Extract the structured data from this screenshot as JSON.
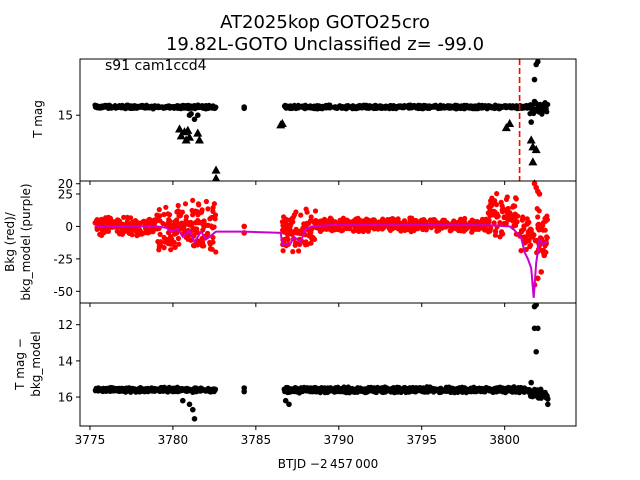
{
  "figure": {
    "title_line1": "AT2025kop  GOTO25cro",
    "title_line2": "19.82L-GOTO Unclassified z= -99.0",
    "xlabel": "BTJD −2 457 000",
    "annotation": "s91 cam1ccd4"
  },
  "chart_data": [
    {
      "name": "magnitude",
      "type": "scatter",
      "ylabel": "T mag",
      "y_inverted": true,
      "xlim": [
        3774.4,
        3804.3
      ],
      "ylim": [
        19.8,
        10.9
      ],
      "yticks": [
        15,
        20
      ],
      "xticks": [
        3775,
        3780,
        3785,
        3790,
        3795,
        3800
      ],
      "detections_color": "#000000",
      "limits_color": "#000000",
      "vline": {
        "x": 3800.9,
        "color": "#ff0000",
        "style": "dashed"
      },
      "segments": [
        {
          "x0": 3775.3,
          "x1": 3782.6,
          "y": 14.4,
          "spread": 0.15
        },
        {
          "x0": 3786.7,
          "x1": 3801.5,
          "y": 14.4,
          "spread": 0.15
        },
        {
          "x0": 3801.5,
          "x1": 3802.6,
          "y": 14.5,
          "spread": 0.5
        }
      ],
      "points": [
        [
          3781.0,
          15.0
        ],
        [
          3781.1,
          14.9
        ],
        [
          3781.3,
          15.3
        ],
        [
          3781.5,
          15.0
        ],
        [
          3784.3,
          14.5
        ],
        [
          3784.3,
          14.4
        ],
        [
          3801.9,
          11.3
        ],
        [
          3802.0,
          11.1
        ],
        [
          3801.8,
          12.4
        ],
        [
          3801.8,
          14.0
        ],
        [
          3802.1,
          14.6
        ],
        [
          3801.6,
          15.5
        ]
      ],
      "limits": [
        [
          3780.4,
          16.0
        ],
        [
          3780.5,
          16.5
        ],
        [
          3780.7,
          16.2
        ],
        [
          3780.8,
          16.8
        ],
        [
          3780.9,
          16.1
        ],
        [
          3781.0,
          16.6
        ],
        [
          3781.5,
          16.3
        ],
        [
          3781.6,
          16.8
        ],
        [
          3782.6,
          19.0
        ],
        [
          3782.6,
          19.6
        ],
        [
          3782.7,
          20.3
        ],
        [
          3782.6,
          21.0
        ],
        [
          3782.7,
          21.5
        ],
        [
          3782.6,
          23.3
        ],
        [
          3786.5,
          15.7
        ],
        [
          3786.6,
          15.6
        ],
        [
          3800.1,
          15.9
        ],
        [
          3800.3,
          15.6
        ],
        [
          3801.6,
          16.8
        ],
        [
          3801.7,
          17.3
        ],
        [
          3801.9,
          17.5
        ],
        [
          3801.7,
          18.4
        ],
        [
          3801.8,
          20.0
        ],
        [
          3801.7,
          22.4
        ]
      ]
    },
    {
      "name": "background",
      "type": "scatter+line",
      "ylabel_line1": "Bkg (red)/",
      "ylabel_line2": "bkg_model (purple)",
      "xlim": [
        3774.4,
        3804.3
      ],
      "ylim": [
        -59,
        35
      ],
      "yticks": [
        -50,
        -25,
        0,
        25
      ],
      "bkg_color": "#ff0000",
      "model_color": "#cc00cc",
      "model_line": [
        [
          3775.3,
          0
        ],
        [
          3779.0,
          0
        ],
        [
          3779.6,
          -1
        ],
        [
          3779.9,
          -4
        ],
        [
          3780.3,
          -2
        ],
        [
          3780.6,
          -8
        ],
        [
          3781.0,
          -3
        ],
        [
          3781.3,
          -12
        ],
        [
          3781.7,
          -4
        ],
        [
          3782.0,
          -10
        ],
        [
          3782.6,
          -4
        ],
        [
          3784.3,
          -4
        ],
        [
          3784.3,
          -4
        ],
        [
          3786.5,
          -5
        ],
        [
          3786.6,
          -14
        ],
        [
          3787.1,
          -13
        ],
        [
          3787.3,
          -8
        ],
        [
          3787.7,
          -12
        ],
        [
          3788.0,
          -2
        ],
        [
          3788.4,
          0
        ],
        [
          3789.5,
          1
        ],
        [
          3799.0,
          1
        ],
        [
          3800.3,
          0
        ],
        [
          3800.6,
          -3
        ],
        [
          3801.0,
          -9
        ],
        [
          3801.2,
          -20
        ],
        [
          3801.4,
          -25
        ],
        [
          3801.6,
          -32
        ],
        [
          3801.75,
          -55
        ],
        [
          3801.9,
          -28
        ],
        [
          3802.1,
          -10
        ],
        [
          3802.3,
          -14
        ],
        [
          3802.5,
          -12
        ],
        [
          3802.6,
          -12
        ]
      ],
      "bkg_segments": [
        {
          "x0": 3775.3,
          "x1": 3779.0,
          "y": 0,
          "spread": 8
        },
        {
          "x0": 3779.0,
          "x1": 3782.6,
          "y": 0,
          "spread": 22
        },
        {
          "x0": 3786.6,
          "x1": 3788.6,
          "y": -3,
          "spread": 20
        },
        {
          "x0": 3788.6,
          "x1": 3799.0,
          "y": 1,
          "spread": 6
        },
        {
          "x0": 3799.0,
          "x1": 3800.8,
          "y": 8,
          "spread": 18
        },
        {
          "x0": 3800.8,
          "x1": 3802.6,
          "y": -5,
          "spread": 20
        }
      ],
      "bkg_points": [
        [
          3784.3,
          0
        ],
        [
          3784.3,
          -5
        ],
        [
          3801.8,
          33
        ],
        [
          3801.9,
          30
        ],
        [
          3802.0,
          27
        ],
        [
          3802.1,
          25
        ],
        [
          3802.0,
          -40
        ],
        [
          3801.8,
          -45
        ],
        [
          3802.2,
          -35
        ]
      ]
    },
    {
      "name": "difference",
      "type": "scatter",
      "ylabel_line1": "T mag −",
      "ylabel_line2": "bkg_model",
      "y_inverted": true,
      "xlim": [
        3774.4,
        3804.3
      ],
      "ylim": [
        17.6,
        10.8
      ],
      "yticks": [
        12,
        14,
        16
      ],
      "xticks": [
        3775,
        3780,
        3785,
        3790,
        3795,
        3800
      ],
      "color": "#000000",
      "segments": [
        {
          "x0": 3775.3,
          "x1": 3782.6,
          "y": 15.6,
          "spread": 0.15
        },
        {
          "x0": 3786.7,
          "x1": 3801.5,
          "y": 15.6,
          "spread": 0.18
        },
        {
          "x0": 3801.5,
          "x1": 3802.6,
          "y": 15.8,
          "spread": 0.4
        }
      ],
      "points": [
        [
          3781.0,
          16.4
        ],
        [
          3781.2,
          16.7
        ],
        [
          3781.3,
          17.2
        ],
        [
          3780.6,
          16.2
        ],
        [
          3784.3,
          15.5
        ],
        [
          3784.3,
          15.7
        ],
        [
          3786.8,
          16.2
        ],
        [
          3787.0,
          16.4
        ],
        [
          3801.8,
          11.0
        ],
        [
          3801.9,
          10.9
        ],
        [
          3801.8,
          12.2
        ],
        [
          3802.0,
          12.2
        ],
        [
          3801.9,
          13.5
        ],
        [
          3802.6,
          16.4
        ],
        [
          3802.6,
          16.1
        ],
        [
          3801.6,
          15.2
        ]
      ]
    }
  ]
}
